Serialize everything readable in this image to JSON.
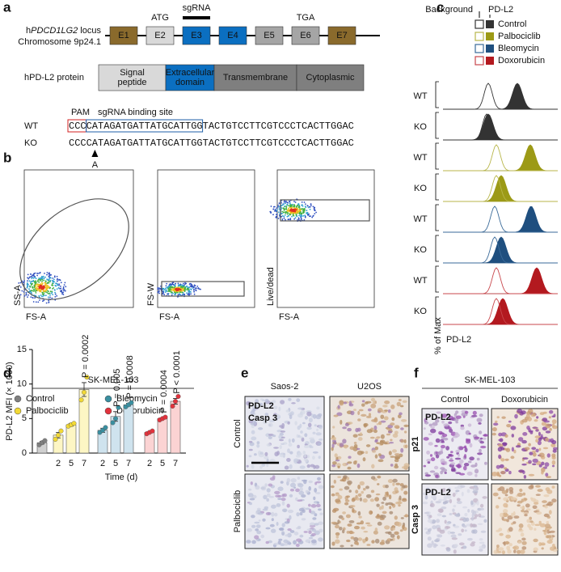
{
  "panel_labels": [
    "a",
    "b",
    "c",
    "d",
    "e",
    "f"
  ],
  "locus": {
    "prefix": "h",
    "gene": "PDCD1LG2",
    "suffix": " locus",
    "chromosome": "Chromosome 9p24.1",
    "exons": [
      {
        "label": "E1",
        "color": "#8a6a2c"
      },
      {
        "label": "E2",
        "color": "#d9d9d9"
      },
      {
        "label": "E3",
        "color": "#0b6fc1"
      },
      {
        "label": "E4",
        "color": "#0b6fc1"
      },
      {
        "label": "E5",
        "color": "#a5a5a5"
      },
      {
        "label": "E6",
        "color": "#a5a5a5"
      },
      {
        "label": "E7",
        "color": "#8a6a2c"
      }
    ],
    "start_codon": "ATG",
    "guide": "sgRNA",
    "stop_codon": "TGA"
  },
  "protein": {
    "label": "hPD-L2 protein",
    "domains": [
      {
        "lines": [
          "Signal",
          "peptide"
        ],
        "color": "#d9d9d9"
      },
      {
        "lines": [
          "Extracellular",
          "domain"
        ],
        "color": "#0b6fc1"
      },
      {
        "lines": [
          "Transmembrane"
        ],
        "color": "#7f7f7f"
      },
      {
        "lines": [
          "Cytoplasmic"
        ],
        "color": "#7f7f7f"
      }
    ]
  },
  "sequence": {
    "pam": "PAM",
    "site": "sgRNA binding site",
    "rows": [
      {
        "label": "WT",
        "seq": "CCCCATAGATGATTATGCATTGGTACTGTCCTTCGTCCCTCACTTGGAC"
      },
      {
        "label": "KO",
        "seq": "CCCCATAGATGATTATGCATTGGTACTGTCCTTCGTCCCTCACTTGGAC"
      }
    ],
    "insertion": "A"
  },
  "gating": {
    "plots": [
      {
        "x_label": "FS-A",
        "y_label": "SS-A"
      },
      {
        "x_label": "FS-A",
        "y_label": "FS-W"
      },
      {
        "x_label": "FS-A",
        "y_label": "Live/dead"
      }
    ]
  },
  "histograms": {
    "legend_headers": [
      "Background",
      "PD-L2"
    ],
    "treatments": [
      {
        "name": "Control",
        "color": "#333333",
        "light": "#333333"
      },
      {
        "name": "Palbociclib",
        "color": "#9c9a16",
        "light": "#b8b64a"
      },
      {
        "name": "Bleomycin",
        "color": "#1f4f7f",
        "light": "#3a6a99"
      },
      {
        "name": "Doxorubicin",
        "color": "#b3191f",
        "light": "#c8474c"
      }
    ],
    "rows": [
      "WT",
      "KO",
      "WT",
      "KO",
      "WT",
      "KO",
      "WT",
      "KO"
    ],
    "y_label": "% of Max",
    "x_label": "PD-L2"
  },
  "chart_data": {
    "type": "bar",
    "title": "SK-MEL-103",
    "y_label": "PD-L2 MFI (× 1000)",
    "x_label": "Time (d)",
    "ylim": [
      0,
      15
    ],
    "yticks": [
      0,
      5,
      10,
      15
    ],
    "series": [
      {
        "name": "Control",
        "color": "#7f7f7f",
        "bar_color": "#d0d0d0",
        "categories": [
          null
        ],
        "values": [
          1.5
        ],
        "errors": [
          0.2
        ],
        "points": [
          [
            1.2,
            1.5,
            1.8
          ]
        ],
        "annotations": [
          null
        ]
      },
      {
        "name": "Palbociclib",
        "color": "#f2d935",
        "bar_color": "#fdf6c4",
        "categories": [
          "2",
          "5",
          "7"
        ],
        "values": [
          2.6,
          4.1,
          9.2
        ],
        "errors": [
          0.4,
          0.2,
          1.0
        ],
        "points": [
          [
            2.0,
            2.6,
            3.2
          ],
          [
            3.9,
            4.1,
            4.3
          ],
          [
            7.7,
            8.8,
            11.0
          ]
        ],
        "annotations": [
          null,
          null,
          "P = 0.0002"
        ]
      },
      {
        "name": "Bleomycin",
        "color": "#3a8fa0",
        "bar_color": "#cfe3ee",
        "categories": [
          "2",
          "5",
          "7"
        ],
        "values": [
          3.3,
          5.3,
          7.0
        ],
        "errors": [
          0.3,
          0.7,
          0.2
        ],
        "points": [
          [
            3.0,
            3.3,
            3.7
          ],
          [
            4.4,
            5.0,
            6.6
          ],
          [
            6.7,
            7.0,
            7.3
          ]
        ],
        "annotations": [
          null,
          "P = 0.005",
          "P = 0.0008"
        ]
      },
      {
        "name": "Doxorubicin",
        "color": "#e2323c",
        "bar_color": "#fbd3d3",
        "categories": [
          "2",
          "5",
          "7"
        ],
        "values": [
          3.0,
          5.0,
          7.5
        ],
        "errors": [
          0.1,
          0.1,
          0.4
        ],
        "points": [
          [
            2.8,
            3.0,
            3.2
          ],
          [
            4.8,
            5.0,
            5.2
          ],
          [
            6.8,
            7.5,
            8.2
          ]
        ],
        "annotations": [
          null,
          "P = 0.0004",
          "P < 0.0001"
        ]
      }
    ]
  },
  "ihc_e": {
    "columns": [
      "Saos-2",
      "U2OS"
    ],
    "rows": [
      "Control",
      "Palbociclib"
    ],
    "stains": [
      {
        "name": "PD-L2",
        "color": "#8a6a2c"
      },
      {
        "name": "Casp 3",
        "color": "#8a2fa8"
      }
    ]
  },
  "ihc_f": {
    "title": "SK-MEL-103",
    "columns": [
      "Control",
      "Doxorubicin"
    ],
    "stain": {
      "name": "PD-L2",
      "color": "#8a6a2c"
    },
    "rows": [
      {
        "name": "p21",
        "color": "#8a2fa8"
      },
      {
        "name": "Casp 3",
        "color": "#8a2fa8"
      }
    ]
  }
}
